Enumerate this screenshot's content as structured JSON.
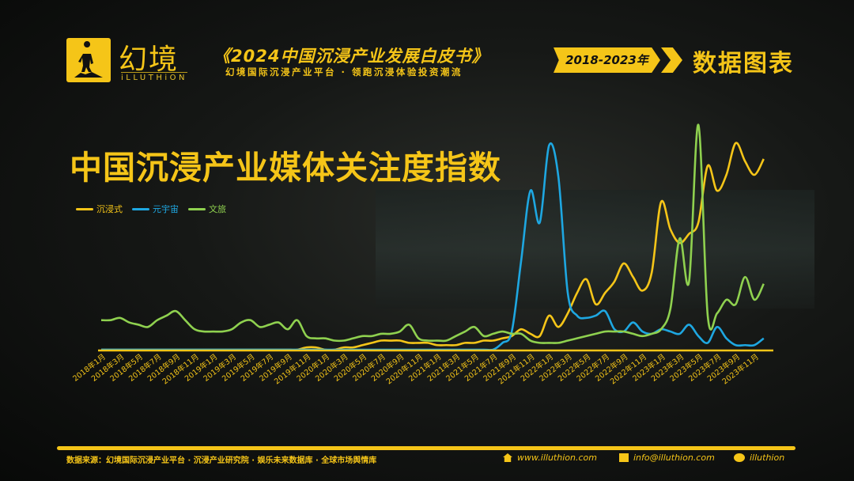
{
  "header": {
    "brand_cn": "幻境",
    "brand_en": "iLLUTHiON",
    "report_title": "《2024中国沉浸产业发展白皮书》",
    "report_tagline": "幻境国际沉浸产业平台 · 领跑沉浸体验投资潮流",
    "year_range": "2018-2023年",
    "section": "数据图表"
  },
  "footer": {
    "source": "数据来源：幻境国际沉浸产业平台 · 沉浸产业研究院 · 娱乐未来数据库 · 全球市场舆情库",
    "website": "www.illuthion.com",
    "email": "info@illuthion.com",
    "wechat": "illuthion"
  },
  "icons": {
    "website": "home-icon",
    "email": "mail-icon",
    "wechat": "wechat-icon"
  },
  "chart_data": {
    "type": "line",
    "title": "中国沉浸产业媒体关注度指数",
    "legend_position": "top-left",
    "grid": false,
    "x_labels": [
      "2018年1月",
      "2018年3月",
      "2018年5月",
      "2018年7月",
      "2018年9月",
      "2018年11月",
      "2019年1月",
      "2019年3月",
      "2019年5月",
      "2019年7月",
      "2019年9月",
      "2019年11月",
      "2020年1月",
      "2020年3月",
      "2020年5月",
      "2020年7月",
      "2020年9月",
      "2020年11月",
      "2021年1月",
      "2021年3月",
      "2021年5月",
      "2021年7月",
      "2021年9月",
      "2021年11月",
      "2022年1月",
      "2022年3月",
      "2022年5月",
      "2022年7月",
      "2022年9月",
      "2022年11月",
      "2023年1月",
      "2023年3月",
      "2023年5月",
      "2023年7月",
      "2023年9月",
      "2023年11月"
    ],
    "x_range": [
      "2018年1月",
      "2023年12月"
    ],
    "ylim": [
      0,
      100
    ],
    "series": [
      {
        "name": "沉浸式",
        "color": "#f5c518",
        "values": [
          0,
          0,
          0,
          0,
          0,
          0,
          0,
          0,
          0,
          0,
          0,
          0,
          0,
          0,
          0,
          0,
          0,
          0,
          0,
          0,
          0,
          0,
          1,
          1,
          0,
          0,
          1,
          1,
          2,
          3,
          4,
          4,
          4,
          3,
          3,
          3,
          2,
          2,
          2,
          3,
          3,
          4,
          4,
          5,
          6,
          9,
          7,
          6,
          15,
          10,
          16,
          25,
          31,
          20,
          25,
          30,
          38,
          32,
          26,
          34,
          65,
          53,
          47,
          51,
          56,
          81,
          70,
          77,
          91,
          83,
          77,
          84
        ]
      },
      {
        "name": "元宇宙",
        "color": "#1ea7e1",
        "values": [
          0,
          0,
          0,
          0,
          0,
          0,
          0,
          0,
          0,
          0,
          0,
          0,
          0,
          0,
          0,
          0,
          0,
          0,
          0,
          0,
          0,
          0,
          0,
          0,
          0,
          0,
          0,
          0,
          0,
          0,
          0,
          0,
          0,
          0,
          0,
          0,
          0,
          0,
          0,
          0,
          0,
          0,
          0,
          3,
          8,
          39,
          70,
          56,
          90,
          76,
          25,
          15,
          14,
          15,
          17,
          9,
          8,
          12,
          8,
          7,
          9,
          8,
          7,
          11,
          6,
          3,
          10,
          5,
          2,
          2,
          2,
          5
        ]
      },
      {
        "name": "文旅",
        "color": "#8fd14f",
        "values": [
          13,
          13,
          14,
          12,
          11,
          10,
          13,
          15,
          17,
          13,
          9,
          8,
          8,
          8,
          9,
          12,
          13,
          10,
          11,
          12,
          9,
          13,
          6,
          5,
          5,
          4,
          4,
          5,
          6,
          6,
          7,
          7,
          8,
          11,
          5,
          4,
          4,
          4,
          6,
          8,
          10,
          6,
          7,
          8,
          7,
          7,
          4,
          3,
          3,
          3,
          4,
          5,
          6,
          7,
          8,
          8,
          8,
          7,
          6,
          7,
          9,
          18,
          49,
          30,
          99,
          15,
          16,
          22,
          20,
          32,
          22,
          29
        ]
      }
    ]
  }
}
